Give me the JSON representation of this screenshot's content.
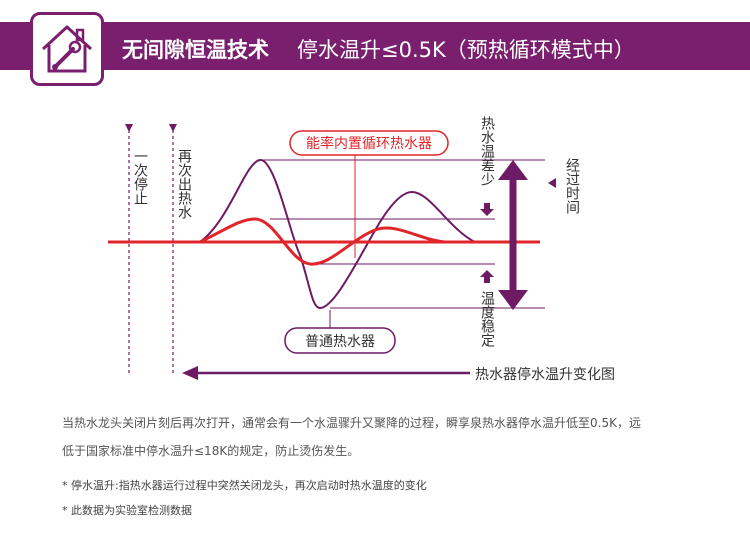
{
  "header": {
    "title_bold": "无间隙恒温技术",
    "title_rest": "停水温升≤0.5K（预热循环模式中）",
    "icon": "house-wrench-icon"
  },
  "diagram": {
    "label_first_stop": "一次停止",
    "label_reopen": "再次出热水",
    "label_series_red": "能率内置循环热水器",
    "label_series_normal": "普通热水器",
    "label_temp_diff_small": "热水温差少",
    "label_temp_stable": "温度稳定",
    "label_time_elapsed": "经过时间",
    "caption": "热水器停水温升变化图",
    "colors": {
      "red": "#e0262b",
      "purple": "#6e1a64",
      "pink": "#f5b9bf"
    }
  },
  "description": {
    "line1": "当热水龙头关闭片刻后再次打开，通常会有一个水温骤升又聚降的过程，瞬享泉热水器停水温升低至0.5K，远",
    "line2": "低于国家标准中停水温升≤18K的规定，防止烫伤发生。"
  },
  "notes": [
    "* 停水温升:指热水器运行过程中突然关闭龙头，再次启动时热水温度的变化",
    "* 此数据为实验室检测数据"
  ]
}
